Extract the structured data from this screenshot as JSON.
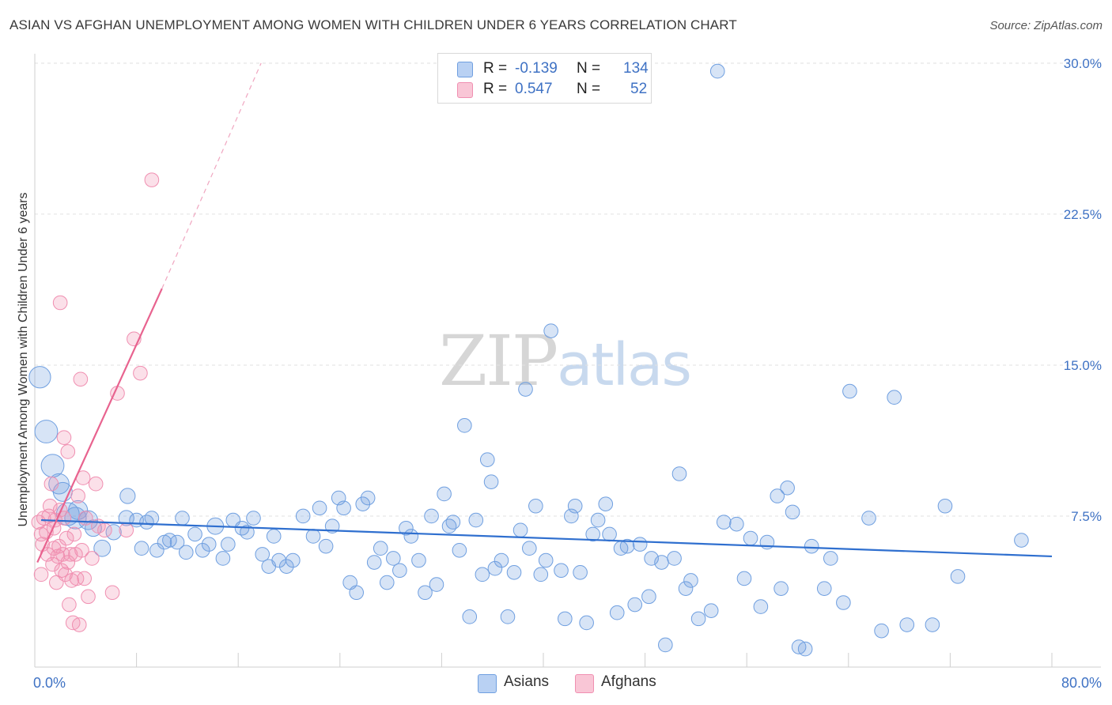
{
  "title": "ASIAN VS AFGHAN UNEMPLOYMENT AMONG WOMEN WITH CHILDREN UNDER 6 YEARS CORRELATION CHART",
  "source": "Source: ZipAtlas.com",
  "watermark": {
    "part1": "ZIP",
    "part2": "atlas"
  },
  "colors": {
    "asians": "#6f9fe0",
    "afghans": "#f08fb1",
    "asians_line": "#2f6fcf",
    "afghans_line": "#e8638f",
    "axis_text": "#3f72c4"
  },
  "legend": {
    "rows": [
      {
        "r_label": "R =",
        "r_value": "-0.139",
        "n_label": "N =",
        "n_value": "134"
      },
      {
        "r_label": "R =",
        "r_value": "0.547",
        "n_label": "N =",
        "n_value": "52"
      }
    ]
  },
  "chart_data": {
    "type": "scatter",
    "title": "ASIAN VS AFGHAN UNEMPLOYMENT AMONG WOMEN WITH CHILDREN UNDER 6 YEARS CORRELATION CHART",
    "xlabel": "",
    "ylabel": "Unemployment Among Women with Children Under 6 years",
    "xlim": [
      0,
      80
    ],
    "ylim": [
      0,
      31
    ],
    "x_tick_labels": [
      "0.0%",
      "80.0%"
    ],
    "y_ticks": [
      7.5,
      15.0,
      22.5,
      30.0
    ],
    "y_tick_labels": [
      "7.5%",
      "15.0%",
      "22.5%",
      "30.0%"
    ],
    "grid": "horizontal dashed",
    "legend_position": "bottom-center",
    "series": [
      {
        "name": "Asians",
        "color": "#6f9fe0",
        "trend": {
          "x0": 0.5,
          "y0": 7.3,
          "x1": 80,
          "y1": 5.5
        },
        "points": [
          [
            0.4,
            14.4,
            1.7
          ],
          [
            0.9,
            11.7,
            1.8
          ],
          [
            1.4,
            10.0,
            1.8
          ],
          [
            1.9,
            9.1,
            1.6
          ],
          [
            2.2,
            8.7,
            1.5
          ],
          [
            2.6,
            7.6,
            1.8
          ],
          [
            3.2,
            7.4,
            1.7
          ],
          [
            3.4,
            7.8,
            1.5
          ],
          [
            4.2,
            7.3,
            1.5
          ],
          [
            4.6,
            6.9,
            1.3
          ],
          [
            5.3,
            5.9,
            1.3
          ],
          [
            6.2,
            6.7,
            1.2
          ],
          [
            7.2,
            7.4,
            1.2
          ],
          [
            7.3,
            8.5,
            1.2
          ],
          [
            8.0,
            7.3,
            1.1
          ],
          [
            8.4,
            5.9,
            1.1
          ],
          [
            8.8,
            7.2,
            1.1
          ],
          [
            9.2,
            7.4,
            1.1
          ],
          [
            9.6,
            5.8,
            1.1
          ],
          [
            10.2,
            6.2,
            1.1
          ],
          [
            10.6,
            6.3,
            1.1
          ],
          [
            11.2,
            6.2,
            1.1
          ],
          [
            11.6,
            7.4,
            1.1
          ],
          [
            11.9,
            5.7,
            1.1
          ],
          [
            12.6,
            6.6,
            1.1
          ],
          [
            13.2,
            5.8,
            1.1
          ],
          [
            13.7,
            6.1,
            1.1
          ],
          [
            14.2,
            7.0,
            1.3
          ],
          [
            14.8,
            5.4,
            1.1
          ],
          [
            15.2,
            6.1,
            1.1
          ],
          [
            15.6,
            7.3,
            1.1
          ],
          [
            16.3,
            6.9,
            1.1
          ],
          [
            16.7,
            6.7,
            1.1
          ],
          [
            17.2,
            7.4,
            1.1
          ],
          [
            17.9,
            5.6,
            1.1
          ],
          [
            18.4,
            5.0,
            1.1
          ],
          [
            18.8,
            6.5,
            1.1
          ],
          [
            19.2,
            5.3,
            1.1
          ],
          [
            19.8,
            5.0,
            1.1
          ],
          [
            20.3,
            5.3,
            1.1
          ],
          [
            21.1,
            7.5,
            1.1
          ],
          [
            21.9,
            6.5,
            1.1
          ],
          [
            22.4,
            7.9,
            1.1
          ],
          [
            22.9,
            6.0,
            1.1
          ],
          [
            23.4,
            7.0,
            1.1
          ],
          [
            23.9,
            8.4,
            1.1
          ],
          [
            24.3,
            7.9,
            1.1
          ],
          [
            24.8,
            4.2,
            1.1
          ],
          [
            25.3,
            3.7,
            1.1
          ],
          [
            25.8,
            8.1,
            1.1
          ],
          [
            26.2,
            8.4,
            1.1
          ],
          [
            26.7,
            5.2,
            1.1
          ],
          [
            27.2,
            5.9,
            1.1
          ],
          [
            27.7,
            4.2,
            1.1
          ],
          [
            28.2,
            5.4,
            1.1
          ],
          [
            28.7,
            4.8,
            1.1
          ],
          [
            29.2,
            6.9,
            1.1
          ],
          [
            29.6,
            6.5,
            1.1
          ],
          [
            30.2,
            5.3,
            1.1
          ],
          [
            30.7,
            3.7,
            1.1
          ],
          [
            31.2,
            7.5,
            1.1
          ],
          [
            31.6,
            4.1,
            1.1
          ],
          [
            32.2,
            8.6,
            1.1
          ],
          [
            32.6,
            7.0,
            1.1
          ],
          [
            32.9,
            7.2,
            1.1
          ],
          [
            33.4,
            5.8,
            1.1
          ],
          [
            33.8,
            12.0,
            1.1
          ],
          [
            34.2,
            2.5,
            1.1
          ],
          [
            34.7,
            7.3,
            1.1
          ],
          [
            35.2,
            4.6,
            1.1
          ],
          [
            35.6,
            10.3,
            1.1
          ],
          [
            35.9,
            9.2,
            1.1
          ],
          [
            36.2,
            4.9,
            1.1
          ],
          [
            36.7,
            5.3,
            1.1
          ],
          [
            37.2,
            2.5,
            1.1
          ],
          [
            37.7,
            4.7,
            1.1
          ],
          [
            38.2,
            6.8,
            1.1
          ],
          [
            38.6,
            13.8,
            1.1
          ],
          [
            38.9,
            5.9,
            1.1
          ],
          [
            39.4,
            8.0,
            1.1
          ],
          [
            39.8,
            4.6,
            1.1
          ],
          [
            40.2,
            5.3,
            1.1
          ],
          [
            40.6,
            16.7,
            1.1
          ],
          [
            41.4,
            4.8,
            1.1
          ],
          [
            41.7,
            2.4,
            1.1
          ],
          [
            42.2,
            7.5,
            1.1
          ],
          [
            42.5,
            8.0,
            1.1
          ],
          [
            42.9,
            4.7,
            1.1
          ],
          [
            43.4,
            2.2,
            1.1
          ],
          [
            43.9,
            6.6,
            1.1
          ],
          [
            44.3,
            7.3,
            1.1
          ],
          [
            44.9,
            8.1,
            1.1
          ],
          [
            45.2,
            6.6,
            1.1
          ],
          [
            45.8,
            2.7,
            1.1
          ],
          [
            46.1,
            5.9,
            1.1
          ],
          [
            46.6,
            6.0,
            1.1
          ],
          [
            47.2,
            3.1,
            1.1
          ],
          [
            47.6,
            6.1,
            1.1
          ],
          [
            48.3,
            3.5,
            1.1
          ],
          [
            48.5,
            5.4,
            1.1
          ],
          [
            49.3,
            5.2,
            1.1
          ],
          [
            49.6,
            1.1,
            1.1
          ],
          [
            50.3,
            5.4,
            1.1
          ],
          [
            50.7,
            9.6,
            1.1
          ],
          [
            51.2,
            3.9,
            1.1
          ],
          [
            51.6,
            4.3,
            1.1
          ],
          [
            52.2,
            2.4,
            1.1
          ],
          [
            53.2,
            2.8,
            1.1
          ],
          [
            53.7,
            29.6,
            1.1
          ],
          [
            54.2,
            7.2,
            1.1
          ],
          [
            55.2,
            7.1,
            1.1
          ],
          [
            55.8,
            4.4,
            1.1
          ],
          [
            56.3,
            6.4,
            1.1
          ],
          [
            57.1,
            3.0,
            1.1
          ],
          [
            57.6,
            6.2,
            1.1
          ],
          [
            58.4,
            8.5,
            1.1
          ],
          [
            58.7,
            3.9,
            1.1
          ],
          [
            59.2,
            8.9,
            1.1
          ],
          [
            59.6,
            7.7,
            1.1
          ],
          [
            60.1,
            1.0,
            1.1
          ],
          [
            60.6,
            0.9,
            1.1
          ],
          [
            61.1,
            6.0,
            1.1
          ],
          [
            62.1,
            3.9,
            1.1
          ],
          [
            62.6,
            5.4,
            1.1
          ],
          [
            63.6,
            3.2,
            1.1
          ],
          [
            64.1,
            13.7,
            1.1
          ],
          [
            65.6,
            7.4,
            1.1
          ],
          [
            66.6,
            1.8,
            1.1
          ],
          [
            67.6,
            13.4,
            1.1
          ],
          [
            68.6,
            2.1,
            1.1
          ],
          [
            70.6,
            2.1,
            1.1
          ],
          [
            71.6,
            8.0,
            1.1
          ],
          [
            72.6,
            4.5,
            1.1
          ],
          [
            77.6,
            6.3,
            1.1
          ]
        ]
      },
      {
        "name": "Afghans",
        "color": "#f08fb1",
        "trend": {
          "x0": 0.2,
          "y0": 5.2,
          "x1": 10.0,
          "y1": 18.8,
          "dash_to": {
            "x": 17.8,
            "y": 30.0
          }
        },
        "points": [
          [
            0.3,
            7.2,
            1.1
          ],
          [
            0.5,
            6.6,
            1.1
          ],
          [
            0.6,
            6.1,
            1.1
          ],
          [
            0.7,
            7.4,
            1.1
          ],
          [
            0.5,
            4.6,
            1.1
          ],
          [
            0.9,
            6.7,
            1.1
          ],
          [
            1.0,
            5.6,
            1.1
          ],
          [
            1.1,
            7.5,
            1.1
          ],
          [
            1.2,
            8.0,
            1.1
          ],
          [
            1.3,
            9.1,
            1.1
          ],
          [
            1.4,
            5.1,
            1.1
          ],
          [
            1.5,
            6.9,
            1.1
          ],
          [
            1.6,
            7.3,
            1.1
          ],
          [
            1.7,
            4.2,
            1.1
          ],
          [
            1.8,
            5.5,
            1.1
          ],
          [
            1.9,
            6.0,
            1.1
          ],
          [
            2.0,
            7.8,
            1.1
          ],
          [
            2.1,
            4.8,
            1.1
          ],
          [
            2.2,
            5.6,
            1.1
          ],
          [
            2.3,
            7.4,
            1.1
          ],
          [
            2.4,
            4.6,
            1.1
          ],
          [
            2.5,
            6.4,
            1.1
          ],
          [
            2.6,
            5.2,
            1.1
          ],
          [
            2.7,
            3.1,
            1.1
          ],
          [
            2.8,
            5.6,
            1.1
          ],
          [
            2.9,
            4.3,
            1.1
          ],
          [
            3.0,
            2.2,
            1.1
          ],
          [
            3.1,
            6.6,
            1.1
          ],
          [
            3.2,
            5.6,
            1.1
          ],
          [
            3.3,
            4.4,
            1.1
          ],
          [
            3.4,
            8.5,
            1.1
          ],
          [
            3.5,
            2.1,
            1.1
          ],
          [
            3.6,
            14.3,
            1.1
          ],
          [
            3.7,
            5.8,
            1.1
          ],
          [
            3.8,
            9.4,
            1.1
          ],
          [
            3.9,
            4.4,
            1.1
          ],
          [
            4.0,
            7.4,
            1.1
          ],
          [
            4.2,
            3.5,
            1.1
          ],
          [
            4.5,
            5.4,
            1.1
          ],
          [
            5.0,
            7.0,
            1.1
          ],
          [
            5.5,
            6.8,
            1.1
          ],
          [
            6.1,
            3.7,
            1.1
          ],
          [
            6.5,
            13.6,
            1.1
          ],
          [
            7.2,
            6.8,
            1.1
          ],
          [
            7.8,
            16.3,
            1.1
          ],
          [
            8.3,
            14.6,
            1.1
          ],
          [
            9.2,
            24.2,
            1.1
          ],
          [
            4.8,
            9.1,
            1.1
          ],
          [
            2.3,
            11.4,
            1.1
          ],
          [
            2.6,
            10.7,
            1.1
          ],
          [
            1.5,
            5.9,
            1.1
          ],
          [
            2.0,
            18.1,
            1.1
          ]
        ]
      }
    ]
  }
}
